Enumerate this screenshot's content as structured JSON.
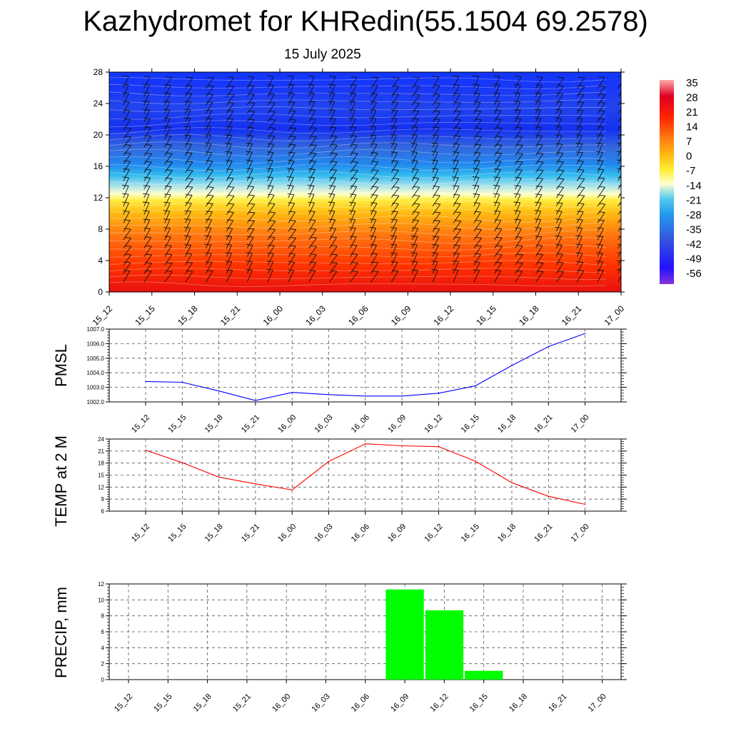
{
  "header": {
    "title": "Kazhydromet for KHRedin(55.1504 69.2578)",
    "subtitle": "15 July 2025"
  },
  "time_labels": [
    "15_12",
    "15_15",
    "15_18",
    "15_21",
    "16_00",
    "16_03",
    "16_06",
    "16_09",
    "16_12",
    "16_15",
    "16_18",
    "16_21",
    "17_00"
  ],
  "chart_data": [
    {
      "type": "heatmap",
      "title": "",
      "xlabel": "",
      "ylabel": "",
      "x_categories": [
        "15_12",
        "15_15",
        "15_18",
        "15_21",
        "16_00",
        "16_03",
        "16_06",
        "16_09",
        "16_12",
        "16_15",
        "16_18",
        "16_21",
        "17_00"
      ],
      "y_ticks": [
        "0",
        "4",
        "8",
        "12",
        "16",
        "20",
        "24",
        "28"
      ],
      "ylim": [
        0,
        28
      ],
      "colorbar_labels": [
        "35",
        "28",
        "21",
        "14",
        "7",
        "0",
        "-7",
        "-14",
        "-21",
        "-28",
        "-35",
        "-42",
        "-49",
        "-56"
      ],
      "colorbar_range": [
        -56,
        35
      ],
      "colors": [
        "#7a2bd8",
        "#1a1aff",
        "#3355ee",
        "#2299ee",
        "#44ccee",
        "#ffffd0",
        "#ffff44",
        "#ffcc11",
        "#ff9911",
        "#ff5500",
        "#ee1111",
        "#cc0022",
        "#ff8888"
      ]
    },
    {
      "type": "line",
      "ylabel": "PMSL",
      "categories": [
        "15_12",
        "15_15",
        "15_18",
        "15_21",
        "16_00",
        "16_03",
        "16_06",
        "16_09",
        "16_12",
        "16_15",
        "16_18",
        "16_21",
        "17_00"
      ],
      "values": [
        1003.4,
        1003.35,
        1002.75,
        1002.1,
        1002.65,
        1002.5,
        1002.4,
        1002.4,
        1002.6,
        1003.1,
        1004.5,
        1005.8,
        1006.7
      ],
      "ylim": [
        1002.0,
        1007.0
      ],
      "y_ticks": [
        "1002.0",
        "1003.0",
        "1004.0",
        "1005.0",
        "1006.0",
        "1007.0"
      ],
      "color": "#0000ff",
      "grid": true
    },
    {
      "type": "line",
      "ylabel": "TEMP at 2 M",
      "categories": [
        "15_12",
        "15_15",
        "15_18",
        "15_21",
        "16_00",
        "16_03",
        "16_06",
        "16_09",
        "16_12",
        "16_15",
        "16_18",
        "16_21",
        "17_00"
      ],
      "values": [
        21.2,
        18.1,
        14.5,
        12.8,
        11.3,
        18.4,
        22.8,
        22.3,
        22.1,
        18.5,
        13.1,
        9.7,
        7.7
      ],
      "ylim": [
        6,
        24
      ],
      "y_ticks": [
        "6",
        "9",
        "12",
        "15",
        "18",
        "21",
        "24"
      ],
      "color": "#ff0000",
      "grid": true
    },
    {
      "type": "bar",
      "ylabel": "PRECIP, mm",
      "categories": [
        "15_12",
        "15_15",
        "15_18",
        "15_21",
        "16_00",
        "16_03",
        "16_06",
        "16_09",
        "16_12",
        "16_15",
        "16_18",
        "16_21",
        "17_00"
      ],
      "values": [
        0,
        0,
        0,
        0,
        0,
        0,
        0,
        11.3,
        8.7,
        1.1,
        0,
        0,
        0
      ],
      "ylim": [
        0,
        12
      ],
      "y_ticks": [
        "0",
        "2",
        "4",
        "6",
        "8",
        "10",
        "12"
      ],
      "color": "#00ff00",
      "grid": true
    }
  ]
}
